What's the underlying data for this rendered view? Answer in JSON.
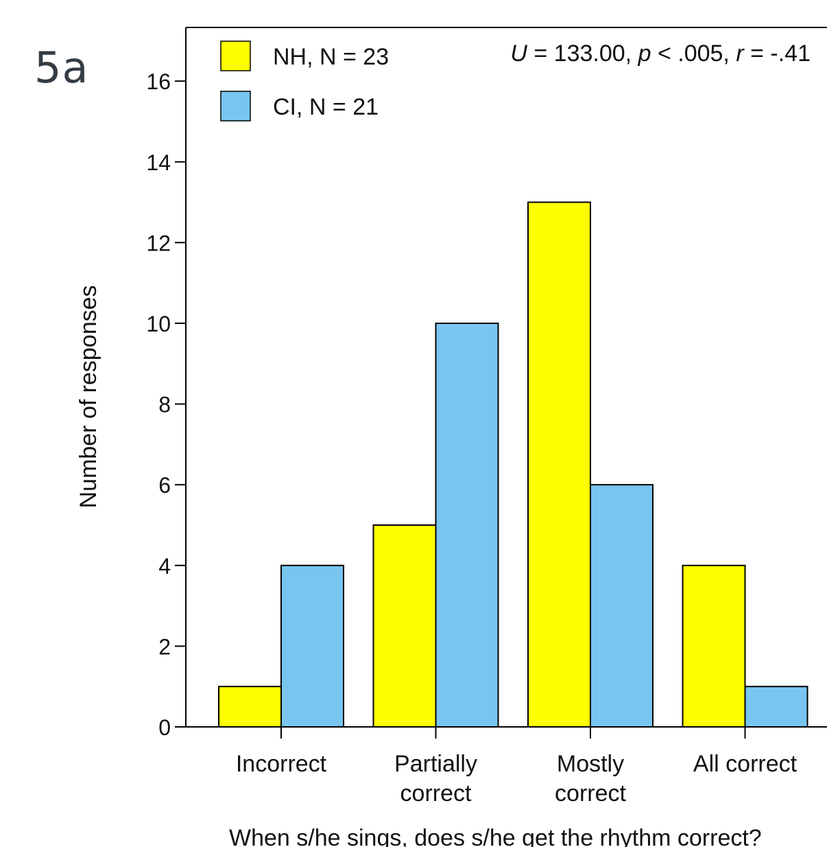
{
  "panel_label": "5a",
  "chart_data": {
    "type": "bar",
    "categories": [
      "Incorrect",
      "Partially correct",
      "Mostly correct",
      "All correct"
    ],
    "category_lines": [
      [
        "Incorrect"
      ],
      [
        "Partially",
        "correct"
      ],
      [
        "Mostly",
        "correct"
      ],
      [
        "All correct"
      ]
    ],
    "series": [
      {
        "name": "NH, N = 23",
        "values": [
          1,
          5,
          13,
          4
        ],
        "color": "#ffff00"
      },
      {
        "name": "CI, N = 21",
        "values": [
          4,
          10,
          6,
          1
        ],
        "color": "#78c5f0"
      }
    ],
    "title": "",
    "xlabel": "When s/he sings, does s/he get the rhythm correct?",
    "ylabel": "Number of responses",
    "ylim": [
      0,
      16
    ],
    "yticks": [
      0,
      2,
      4,
      6,
      8,
      10,
      12,
      14,
      16
    ],
    "stat_parts": [
      {
        "text": "U",
        "italic": true
      },
      {
        "text": " = 133.00, ",
        "italic": false
      },
      {
        "text": "p",
        "italic": true
      },
      {
        "text": " < .005, ",
        "italic": false
      },
      {
        "text": "r",
        "italic": true
      },
      {
        "text": " = -.41",
        "italic": false
      }
    ],
    "grid": false,
    "legend": "top-left"
  }
}
